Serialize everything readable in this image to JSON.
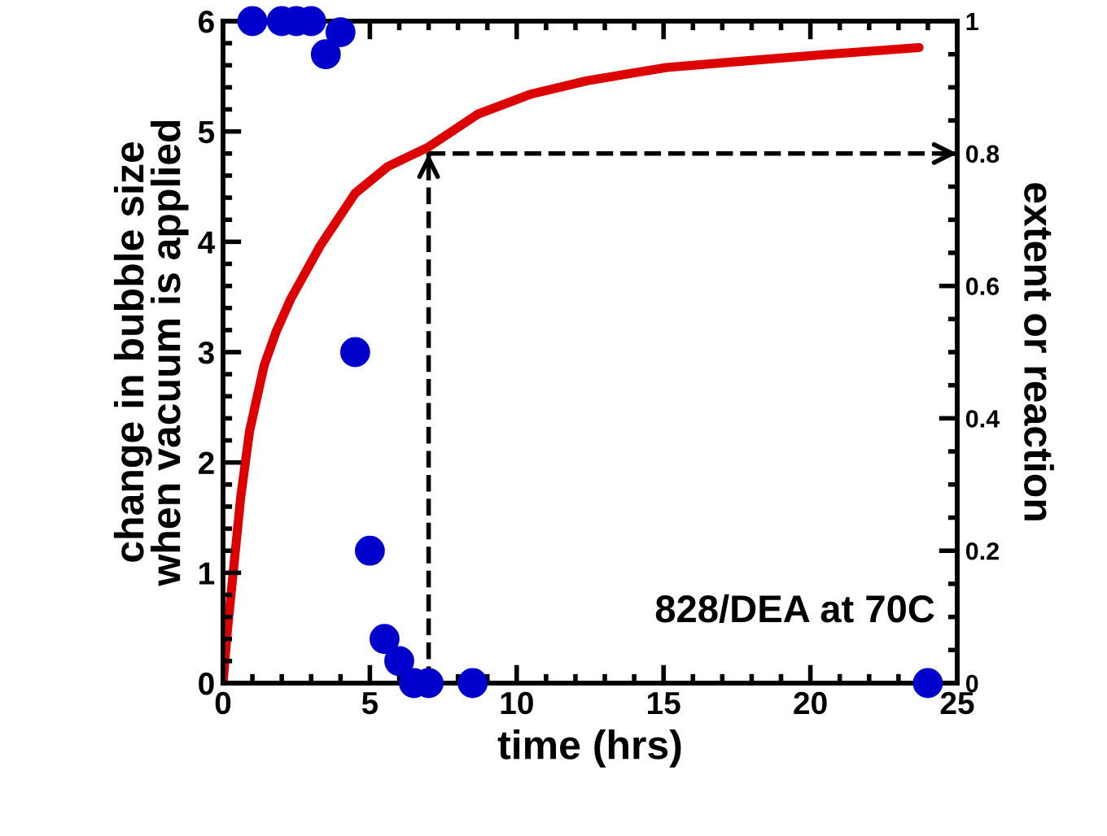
{
  "chart_data": {
    "type": "scatter",
    "xlabel": "time (hrs)",
    "ylabel": "change in bubble size\nwhen vacuum is applied",
    "y2label": "extent or reaction",
    "xlim": [
      0,
      25
    ],
    "xticks": [
      0,
      5,
      10,
      15,
      20,
      25
    ],
    "ylim": [
      0,
      6
    ],
    "yticks": [
      0,
      1,
      2,
      3,
      4,
      5,
      6
    ],
    "y2lim": [
      0,
      1
    ],
    "y2ticks": [
      0,
      0.2,
      0.4,
      0.6,
      0.8,
      1
    ],
    "grid": false,
    "legend": false,
    "marker": "circle",
    "series": [
      {
        "color": "#0000cc",
        "x": [
          1,
          2,
          2.5,
          3,
          4,
          3.5,
          4.5,
          5,
          5.5,
          6,
          6.5,
          7,
          8.5,
          24
        ],
        "values": [
          6,
          6,
          6,
          6,
          5.9,
          5.7,
          3,
          1.2,
          0.4,
          0.2,
          0,
          0,
          0,
          0
        ]
      },
      {
        "type": "line",
        "axis": "y2",
        "color": "#dd0000",
        "marker": "none",
        "line_style": "solid",
        "x": [
          0,
          0.15,
          0.33,
          0.6,
          0.9,
          1.4,
          1.8,
          2.3,
          2.8,
          3.3,
          3.9,
          4.5,
          5.6,
          7,
          8.7,
          10.5,
          12.4,
          15.1,
          17.8,
          20.6,
          23.7
        ],
        "values": [
          0,
          0.08,
          0.16,
          0.28,
          0.38,
          0.48,
          0.53,
          0.58,
          0.62,
          0.66,
          0.7,
          0.74,
          0.78,
          0.81,
          0.86,
          0.89,
          0.91,
          0.93,
          0.94,
          0.95,
          0.96
        ]
      }
    ],
    "ref_lines": [
      {
        "axis": "x",
        "value": 7,
        "color": "#000000",
        "line_style": "dashed"
      },
      {
        "axis": "y2",
        "value": 0.8,
        "color": "#000000",
        "line_style": "dashed"
      }
    ],
    "annotations": [
      "828/DEA at 70C"
    ]
  }
}
